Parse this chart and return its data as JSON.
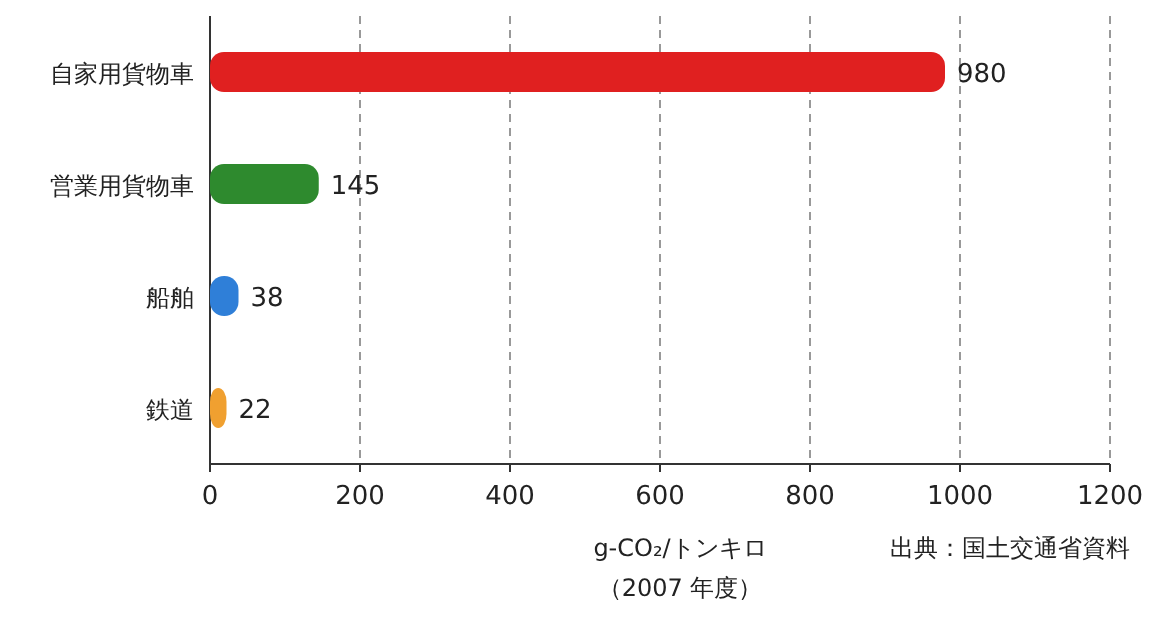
{
  "chart_data": {
    "type": "bar",
    "orientation": "horizontal",
    "categories": [
      "自家用貨物車",
      "営業用貨物車",
      "船舶",
      "鉄道"
    ],
    "values": [
      980,
      145,
      38,
      22
    ],
    "colors": [
      "#e02020",
      "#2e8a2e",
      "#2f7fd8",
      "#f0a030"
    ],
    "data_labels": true,
    "xlim": [
      0,
      1200
    ],
    "xticks": [
      0,
      200,
      400,
      600,
      800,
      1000,
      1200
    ],
    "grid": "x",
    "xlabel": "g-CO₂/トンキロ",
    "annotations": [
      "（2007 年度）",
      "出典：国土交通省資料"
    ]
  }
}
